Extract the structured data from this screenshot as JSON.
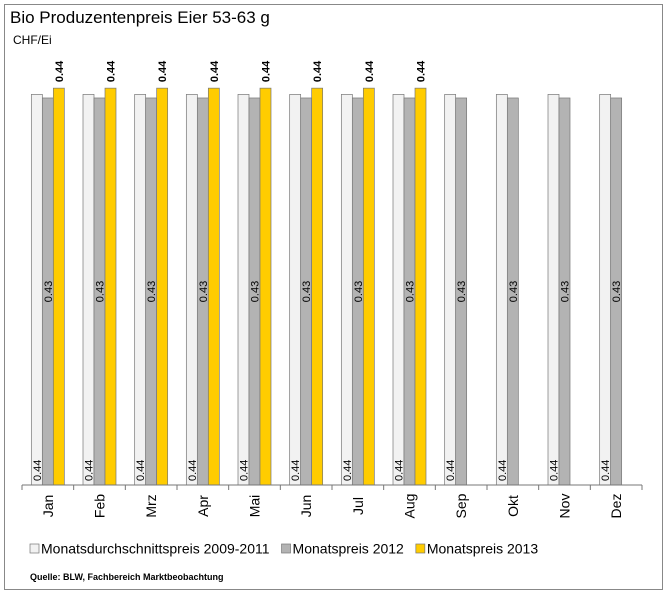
{
  "chart_data": {
    "type": "bar",
    "title": "Bio Produzentenpreis Eier 53-63 g",
    "y_unit": "CHF/Ei",
    "source": "Quelle: BLW, Fachbereich Marktbeobachtung",
    "categories": [
      "Jan",
      "Feb",
      "Mrz",
      "Apr",
      "Mai",
      "Jun",
      "Jul",
      "Aug",
      "Sep",
      "Okt",
      "Nov",
      "Dez"
    ],
    "ylim": [
      0,
      0.452
    ],
    "series": [
      {
        "name": "Monatsdurchschnittspreis 2009-2011",
        "color": "#f2f2f2",
        "values": [
          0.437,
          0.437,
          0.437,
          0.437,
          0.437,
          0.437,
          0.437,
          0.437,
          0.437,
          0.437,
          0.437,
          0.437
        ],
        "value_labels": [
          "0.44",
          "0.44",
          "0.44",
          "0.44",
          "0.44",
          "0.44",
          "0.44",
          "0.44",
          "0.44",
          "0.44",
          "0.44",
          "0.44"
        ]
      },
      {
        "name": "Monatspreis 2012",
        "color": "#b3b3b3",
        "values": [
          0.433,
          0.433,
          0.433,
          0.433,
          0.433,
          0.433,
          0.433,
          0.433,
          0.433,
          0.433,
          0.433,
          0.433
        ],
        "value_labels": [
          "0.43",
          "0.43",
          "0.43",
          "0.43",
          "0.43",
          "0.43",
          "0.43",
          "0.43",
          "0.43",
          "0.43",
          "0.43",
          "0.43"
        ]
      },
      {
        "name": "Monatspreis 2013",
        "color": "#ffcc00",
        "values": [
          0.444,
          0.444,
          0.444,
          0.444,
          0.444,
          0.444,
          0.444,
          0.444,
          null,
          null,
          null,
          null
        ],
        "value_labels": [
          "0.44",
          "0.44",
          "0.44",
          "0.44",
          "0.44",
          "0.44",
          "0.44",
          "0.44",
          null,
          null,
          null,
          null
        ]
      }
    ]
  }
}
